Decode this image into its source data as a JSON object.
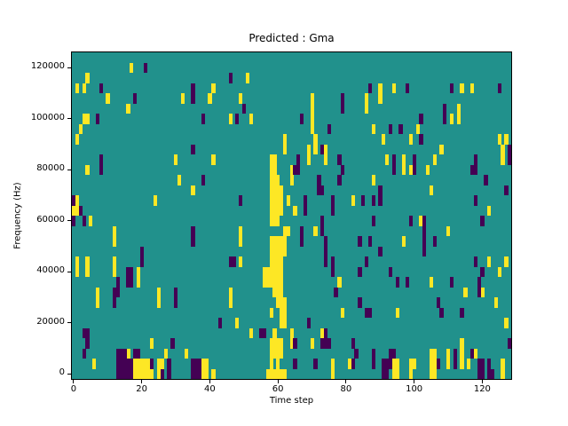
{
  "chart_data": {
    "type": "heatmap",
    "title": "Predicted : Gma",
    "xlabel": "Time step",
    "ylabel": "Frequency (Hz)",
    "x_ticks": [
      0,
      20,
      40,
      60,
      80,
      100,
      120
    ],
    "y_ticks": [
      0,
      20000,
      40000,
      60000,
      80000,
      100000,
      120000
    ],
    "n_cols": 129,
    "n_rows": 32,
    "x_range": [
      -0.5,
      128.5
    ],
    "y_range_hz": [
      0,
      128000
    ],
    "row_height_hz": 4000,
    "colormap": "viridis",
    "legend": "none",
    "grid": "off",
    "colors": {
      "mid_value": "#21918c",
      "high_value": "#fde725",
      "low_value": "#440154",
      "figure_bg": "#ffffff",
      "text": "#000000"
    },
    "cells_format": "[time_step, row_start, row_end]; row 0 = bottom (0 Hz), frequency = row * 4000 Hz",
    "yellow_cells": [
      [
        17,
        30,
        30
      ],
      [
        4,
        29,
        29
      ],
      [
        51,
        29,
        29
      ],
      [
        1,
        28,
        28
      ],
      [
        3,
        28,
        28
      ],
      [
        41,
        28,
        28
      ],
      [
        94,
        28,
        28
      ],
      [
        114,
        28,
        28
      ],
      [
        117,
        28,
        28
      ],
      [
        90,
        27,
        28
      ],
      [
        10,
        27,
        27
      ],
      [
        32,
        27,
        27
      ],
      [
        40,
        27,
        27
      ],
      [
        49,
        27,
        27
      ],
      [
        16,
        26,
        26
      ],
      [
        86,
        26,
        27
      ],
      [
        70,
        24,
        27
      ],
      [
        3,
        25,
        25
      ],
      [
        4,
        25,
        25
      ],
      [
        46,
        25,
        25
      ],
      [
        111,
        25,
        25
      ],
      [
        113,
        25,
        26
      ],
      [
        52,
        25,
        25
      ],
      [
        88,
        24,
        24
      ],
      [
        101,
        24,
        24
      ],
      [
        2,
        24,
        24
      ],
      [
        1,
        23,
        23
      ],
      [
        91,
        23,
        23
      ],
      [
        99,
        23,
        23
      ],
      [
        125,
        23,
        23
      ],
      [
        127,
        23,
        23
      ],
      [
        62,
        22,
        23
      ],
      [
        71,
        22,
        23
      ],
      [
        41,
        21,
        21
      ],
      [
        69,
        21,
        22
      ],
      [
        74,
        21,
        22
      ],
      [
        106,
        21,
        21
      ],
      [
        108,
        22,
        22
      ],
      [
        126,
        21,
        22
      ],
      [
        30,
        21,
        21
      ],
      [
        92,
        21,
        21
      ],
      [
        97,
        20,
        21
      ],
      [
        104,
        20,
        20
      ],
      [
        99,
        20,
        20
      ],
      [
        4,
        20,
        20
      ],
      [
        31,
        19,
        19
      ],
      [
        88,
        19,
        19
      ],
      [
        64,
        19,
        20
      ],
      [
        35,
        18,
        18
      ],
      [
        105,
        18,
        18
      ],
      [
        24,
        17,
        17
      ],
      [
        82,
        17,
        17
      ],
      [
        0,
        16,
        17
      ],
      [
        1,
        16,
        17
      ],
      [
        63,
        17,
        17
      ],
      [
        122,
        16,
        16
      ],
      [
        65,
        16,
        16
      ],
      [
        102,
        15,
        15
      ],
      [
        5,
        15,
        15
      ],
      [
        12,
        13,
        14
      ],
      [
        49,
        13,
        14
      ],
      [
        71,
        14,
        14
      ],
      [
        110,
        14,
        14
      ],
      [
        97,
        13,
        13
      ],
      [
        1,
        10,
        11
      ],
      [
        4,
        10,
        11
      ],
      [
        12,
        10,
        11
      ],
      [
        49,
        11,
        11
      ],
      [
        19,
        9,
        10
      ],
      [
        78,
        9,
        9
      ],
      [
        105,
        9,
        9
      ],
      [
        7,
        7,
        8
      ],
      [
        25,
        7,
        8
      ],
      [
        46,
        7,
        8
      ],
      [
        115,
        8,
        8
      ],
      [
        120,
        8,
        8
      ],
      [
        122,
        11,
        11
      ],
      [
        127,
        11,
        11
      ],
      [
        125,
        10,
        10
      ],
      [
        79,
        6,
        6
      ],
      [
        95,
        6,
        6
      ],
      [
        124,
        7,
        7
      ],
      [
        48,
        5,
        5
      ],
      [
        52,
        4,
        4
      ],
      [
        73,
        4,
        4
      ],
      [
        127,
        5,
        5
      ],
      [
        23,
        3,
        3
      ],
      [
        70,
        3,
        3
      ],
      [
        16,
        2,
        2
      ],
      [
        27,
        2,
        2
      ],
      [
        33,
        2,
        2
      ],
      [
        6,
        1,
        1
      ],
      [
        18,
        0,
        1
      ],
      [
        19,
        0,
        1
      ],
      [
        20,
        0,
        1
      ],
      [
        21,
        0,
        1
      ],
      [
        22,
        0,
        1
      ],
      [
        23,
        0,
        0
      ],
      [
        25,
        0,
        1
      ],
      [
        26,
        1,
        1
      ],
      [
        38,
        0,
        1
      ],
      [
        39,
        0,
        1
      ],
      [
        41,
        0,
        0
      ],
      [
        56,
        9,
        10
      ],
      [
        57,
        9,
        10
      ],
      [
        57,
        0,
        0
      ],
      [
        58,
        9,
        13
      ],
      [
        58,
        6,
        6
      ],
      [
        58,
        15,
        21
      ],
      [
        58,
        2,
        3
      ],
      [
        58,
        0,
        1
      ],
      [
        59,
        8,
        13
      ],
      [
        59,
        15,
        21
      ],
      [
        59,
        2,
        4
      ],
      [
        59,
        0,
        0
      ],
      [
        60,
        7,
        13
      ],
      [
        60,
        15,
        19
      ],
      [
        60,
        0,
        3
      ],
      [
        61,
        5,
        13
      ],
      [
        61,
        16,
        18
      ],
      [
        61,
        2,
        3
      ],
      [
        61,
        0,
        0
      ],
      [
        62,
        12,
        13
      ],
      [
        62,
        5,
        7
      ],
      [
        62,
        14,
        14
      ],
      [
        62,
        0,
        0
      ],
      [
        63,
        14,
        14
      ],
      [
        64,
        3,
        4
      ],
      [
        76,
        0,
        1
      ],
      [
        81,
        1,
        1
      ],
      [
        94,
        0,
        1
      ],
      [
        95,
        0,
        1
      ],
      [
        99,
        0,
        1
      ],
      [
        100,
        1,
        1
      ],
      [
        105,
        0,
        2
      ],
      [
        106,
        0,
        2
      ],
      [
        110,
        1,
        2
      ],
      [
        114,
        1,
        3
      ],
      [
        116,
        1,
        1
      ],
      [
        118,
        2,
        2
      ],
      [
        126,
        0,
        1
      ]
    ],
    "dark_cells": [
      [
        21,
        30,
        30
      ],
      [
        46,
        29,
        29
      ],
      [
        8,
        28,
        28
      ],
      [
        98,
        28,
        28
      ],
      [
        111,
        28,
        28
      ],
      [
        125,
        28,
        28
      ],
      [
        87,
        28,
        28
      ],
      [
        35,
        27,
        28
      ],
      [
        18,
        27,
        27
      ],
      [
        50,
        26,
        26
      ],
      [
        79,
        26,
        27
      ],
      [
        67,
        25,
        25
      ],
      [
        7,
        25,
        25
      ],
      [
        38,
        25,
        25
      ],
      [
        109,
        25,
        26
      ],
      [
        102,
        25,
        25
      ],
      [
        48,
        25,
        25
      ],
      [
        75,
        24,
        24
      ],
      [
        93,
        24,
        24
      ],
      [
        96,
        24,
        24
      ],
      [
        102,
        23,
        23
      ],
      [
        8,
        20,
        21
      ],
      [
        35,
        22,
        22
      ],
      [
        73,
        22,
        22
      ],
      [
        65,
        20,
        20
      ],
      [
        66,
        20,
        21
      ],
      [
        78,
        21,
        21
      ],
      [
        78,
        19,
        19
      ],
      [
        79,
        20,
        20
      ],
      [
        94,
        20,
        21
      ],
      [
        100,
        20,
        21
      ],
      [
        117,
        20,
        20
      ],
      [
        118,
        20,
        21
      ],
      [
        121,
        19,
        19
      ],
      [
        38,
        19,
        19
      ],
      [
        90,
        18,
        18
      ],
      [
        72,
        18,
        19
      ],
      [
        73,
        18,
        18
      ],
      [
        127,
        18,
        18
      ],
      [
        128,
        21,
        22
      ],
      [
        76,
        17,
        17
      ],
      [
        85,
        17,
        17
      ],
      [
        88,
        17,
        17
      ],
      [
        90,
        17,
        17
      ],
      [
        118,
        17,
        17
      ],
      [
        49,
        17,
        17
      ],
      [
        0,
        17,
        17
      ],
      [
        0,
        15,
        15
      ],
      [
        2,
        16,
        16
      ],
      [
        3,
        15,
        15
      ],
      [
        68,
        16,
        17
      ],
      [
        76,
        16,
        16
      ],
      [
        73,
        14,
        15
      ],
      [
        88,
        15,
        15
      ],
      [
        99,
        15,
        15
      ],
      [
        120,
        15,
        15
      ],
      [
        35,
        13,
        14
      ],
      [
        67,
        13,
        14
      ],
      [
        74,
        11,
        13
      ],
      [
        76,
        10,
        11
      ],
      [
        103,
        12,
        15
      ],
      [
        84,
        13,
        13
      ],
      [
        87,
        13,
        13
      ],
      [
        90,
        12,
        12
      ],
      [
        106,
        13,
        13
      ],
      [
        20,
        11,
        12
      ],
      [
        86,
        11,
        11
      ],
      [
        118,
        11,
        11
      ],
      [
        46,
        11,
        11
      ],
      [
        47,
        11,
        11
      ],
      [
        84,
        10,
        10
      ],
      [
        93,
        10,
        10
      ],
      [
        120,
        10,
        10
      ],
      [
        16,
        9,
        10
      ],
      [
        17,
        9,
        10
      ],
      [
        13,
        8,
        9
      ],
      [
        95,
        9,
        9
      ],
      [
        98,
        9,
        9
      ],
      [
        111,
        9,
        9
      ],
      [
        119,
        9,
        9
      ],
      [
        12,
        7,
        8
      ],
      [
        30,
        7,
        8
      ],
      [
        77,
        8,
        8
      ],
      [
        119,
        8,
        8
      ],
      [
        114,
        6,
        6
      ],
      [
        86,
        6,
        6
      ],
      [
        87,
        6,
        6
      ],
      [
        84,
        7,
        7
      ],
      [
        107,
        7,
        7
      ],
      [
        108,
        6,
        6
      ],
      [
        43,
        5,
        5
      ],
      [
        69,
        5,
        5
      ],
      [
        3,
        4,
        4
      ],
      [
        55,
        4,
        4
      ],
      [
        56,
        4,
        4
      ],
      [
        74,
        4,
        4
      ],
      [
        4,
        3,
        4
      ],
      [
        29,
        3,
        3
      ],
      [
        65,
        3,
        3
      ],
      [
        73,
        3,
        3
      ],
      [
        74,
        3,
        3
      ],
      [
        75,
        3,
        3
      ],
      [
        82,
        3,
        3
      ],
      [
        83,
        2,
        2
      ],
      [
        3,
        2,
        2
      ],
      [
        13,
        2,
        2
      ],
      [
        14,
        2,
        2
      ],
      [
        18,
        2,
        2
      ],
      [
        19,
        2,
        2
      ],
      [
        23,
        1,
        1
      ],
      [
        112,
        1,
        2
      ],
      [
        117,
        2,
        2
      ],
      [
        88,
        1,
        2
      ],
      [
        91,
        0,
        1
      ],
      [
        92,
        0,
        1
      ],
      [
        93,
        1,
        2
      ],
      [
        94,
        2,
        2
      ],
      [
        13,
        0,
        1
      ],
      [
        14,
        0,
        2
      ],
      [
        15,
        0,
        2
      ],
      [
        16,
        0,
        1
      ],
      [
        17,
        0,
        1
      ],
      [
        26,
        0,
        0
      ],
      [
        28,
        0,
        1
      ],
      [
        35,
        0,
        1
      ],
      [
        36,
        0,
        1
      ],
      [
        37,
        0,
        1
      ],
      [
        107,
        1,
        1
      ],
      [
        82,
        1,
        1
      ],
      [
        71,
        1,
        1
      ],
      [
        65,
        1,
        1
      ],
      [
        119,
        0,
        1
      ],
      [
        120,
        0,
        1
      ],
      [
        122,
        0,
        1
      ],
      [
        123,
        0,
        0
      ],
      [
        128,
        3,
        3
      ]
    ]
  }
}
